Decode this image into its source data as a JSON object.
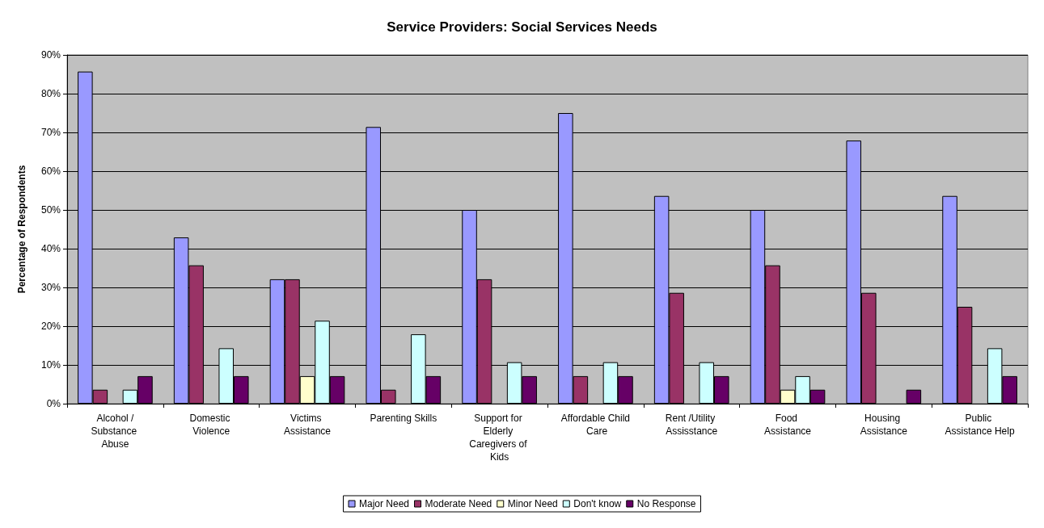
{
  "chart_data": {
    "type": "bar",
    "title": "Service Providers: Social Services Needs",
    "ylabel": "Percentage of Respondents",
    "categories": [
      "Alcohol /Substance Abuse",
      "Domestic Violence",
      "Victims Assistance",
      "Parenting Skills",
      "Support for Elderly Caregivers of Kids",
      "Affordable Child Care",
      "Rent /Utility Assisstance",
      "Food Assistance",
      "Housing Assistance",
      "Public Assistance Help"
    ],
    "series": [
      {
        "name": "Major Need",
        "color": "#9999ff",
        "values": [
          85.7,
          42.9,
          32.1,
          71.4,
          50,
          75,
          53.6,
          50,
          67.9,
          53.6
        ]
      },
      {
        "name": "Moderate Need",
        "color": "#993366",
        "values": [
          3.6,
          35.7,
          32.1,
          3.6,
          32.1,
          7.1,
          28.6,
          35.7,
          28.6,
          25
        ]
      },
      {
        "name": "Minor Need",
        "color": "#ffffcc",
        "values": [
          0,
          0,
          7.1,
          0,
          0,
          0,
          0,
          3.6,
          0,
          0
        ]
      },
      {
        "name": "Don't know",
        "color": "#ccffff",
        "values": [
          3.6,
          14.3,
          21.4,
          17.9,
          10.7,
          10.7,
          10.7,
          7.1,
          0,
          14.3
        ]
      },
      {
        "name": "No Response",
        "color": "#660066",
        "values": [
          7.1,
          7.1,
          7.1,
          7.1,
          7.1,
          7.1,
          7.1,
          3.6,
          3.6,
          7.1
        ]
      }
    ],
    "ylim": [
      0,
      90
    ],
    "yticks": [
      {
        "value": 0,
        "label": "0%"
      },
      {
        "value": 10,
        "label": "10%"
      },
      {
        "value": 20,
        "label": "20%"
      },
      {
        "value": 30,
        "label": "30%"
      },
      {
        "value": 40,
        "label": "40%"
      },
      {
        "value": 50,
        "label": "50%"
      },
      {
        "value": 60,
        "label": "60%"
      },
      {
        "value": 70,
        "label": "70%"
      },
      {
        "value": 80,
        "label": "80%"
      },
      {
        "value": 90,
        "label": "90%"
      }
    ],
    "grid": "y",
    "legend": "bottom"
  }
}
